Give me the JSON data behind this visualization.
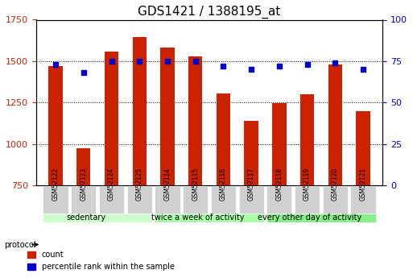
{
  "title": "GDS1421 / 1388195_at",
  "samples": [
    "GSM52122",
    "GSM52123",
    "GSM52124",
    "GSM52125",
    "GSM52114",
    "GSM52115",
    "GSM52116",
    "GSM52117",
    "GSM52118",
    "GSM52119",
    "GSM52120",
    "GSM52121"
  ],
  "counts": [
    1470,
    975,
    1560,
    1645,
    1580,
    1530,
    1305,
    1140,
    1245,
    1300,
    1480,
    1200
  ],
  "percentiles": [
    73,
    68,
    75,
    75,
    75,
    75,
    72,
    70,
    72,
    73,
    74,
    70
  ],
  "ylim_left": [
    750,
    1750
  ],
  "ylim_right": [
    0,
    100
  ],
  "yticks_left": [
    750,
    1000,
    1250,
    1500,
    1750
  ],
  "yticks_right": [
    0,
    25,
    50,
    75,
    100
  ],
  "bar_color": "#cc2200",
  "dot_color": "#0000cc",
  "bar_bottom": 750,
  "groups": [
    {
      "label": "sedentary",
      "start": 0,
      "end": 4,
      "color": "#ccffcc"
    },
    {
      "label": "twice a week of activity",
      "start": 4,
      "end": 8,
      "color": "#aaffaa"
    },
    {
      "label": "every other day of activity",
      "start": 8,
      "end": 12,
      "color": "#88ee88"
    }
  ],
  "protocol_label": "protocol",
  "legend_count_label": "count",
  "legend_percentile_label": "percentile rank within the sample",
  "title_fontsize": 11,
  "tick_fontsize": 8,
  "label_fontsize": 8,
  "group_fontsize": 8
}
